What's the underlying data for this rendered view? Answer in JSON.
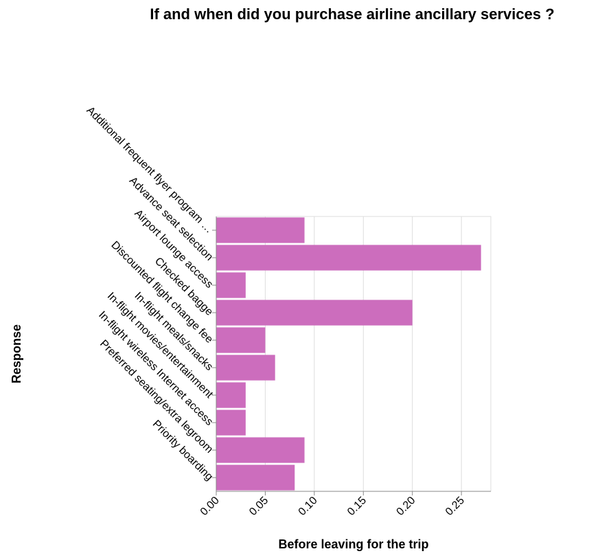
{
  "chart_data": {
    "type": "bar",
    "orientation": "horizontal",
    "title": "If and when did you purchase airline ancillary services ?",
    "xlabel": "Before leaving for the trip",
    "ylabel": "Response",
    "categories": [
      "Additional frequent flyer program …",
      "Advance seat selection",
      "Airport lounge access",
      "Checked bagge",
      "Discounted flight change fee",
      "In-flight meals/snacks",
      "In-flight movies/entertainment",
      "In-flight wireless Internet access",
      "Preferred seating/extra legroom",
      "Priority boarding"
    ],
    "values": [
      0.09,
      0.27,
      0.03,
      0.2,
      0.05,
      0.06,
      0.03,
      0.03,
      0.09,
      0.08
    ],
    "xticks": [
      "0.00",
      "0.05",
      "0.10",
      "0.15",
      "0.20",
      "0.25"
    ],
    "xlim": [
      0,
      0.28
    ],
    "grid": true,
    "bar_color": "#cc6dbd"
  }
}
